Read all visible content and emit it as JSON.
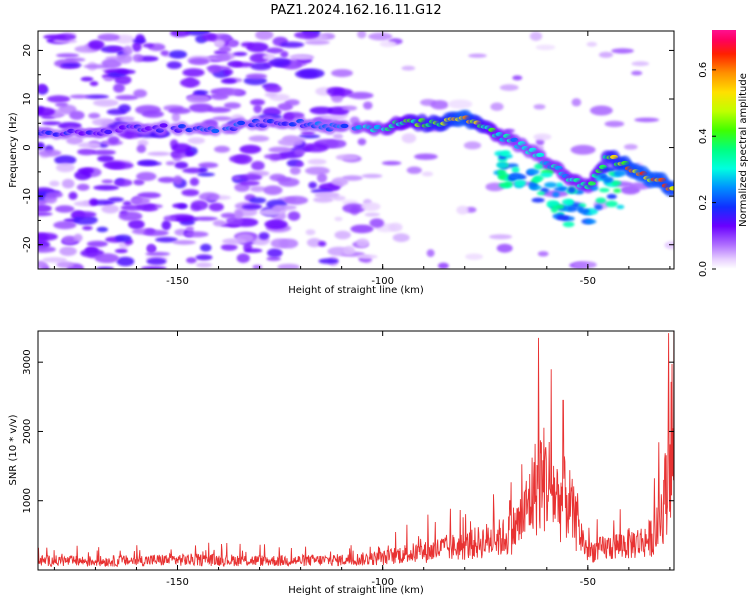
{
  "chart_data": [
    {
      "type": "heatmap",
      "title": "PAZ1.2024.162.16.11.G12",
      "xlabel": "Height of straight line (km)",
      "ylabel": "Frequency (Hz)",
      "xlim": [
        -184,
        -29
      ],
      "ylim": [
        -25,
        24
      ],
      "xticks": [
        -150,
        -100,
        -50
      ],
      "yticks": [
        20,
        10,
        0,
        -10,
        -20
      ],
      "colorbar": {
        "label": "Normalized spectral amplitude",
        "range": [
          0,
          0.72
        ],
        "ticks": [
          "0.0",
          "0.2",
          "0.4",
          "0.6"
        ],
        "colormap": "gist_ncar-like (white-purple-blue-cyan-green-yellow-orange-red-pink)"
      },
      "ridge": {
        "description": "frequency of strongest amplitude vs height",
        "x": [
          -184,
          -170,
          -160,
          -150,
          -140,
          -130,
          -120,
          -110,
          -100,
          -95,
          -90,
          -85,
          -80,
          -75,
          -70,
          -65,
          -60,
          -55,
          -50,
          -45,
          -40,
          -35,
          -30
        ],
        "y": [
          3,
          3,
          4,
          4,
          4,
          5,
          5,
          4,
          4,
          5,
          5,
          5,
          6,
          4,
          2,
          0,
          -3,
          -6,
          -8,
          -2,
          -4,
          -6,
          -8
        ],
        "amplitude": [
          0.22,
          0.14,
          0.16,
          0.18,
          0.22,
          0.2,
          0.2,
          0.25,
          0.32,
          0.38,
          0.45,
          0.5,
          0.62,
          0.42,
          0.32,
          0.28,
          0.3,
          0.32,
          0.34,
          0.45,
          0.58,
          0.62,
          0.58
        ]
      }
    },
    {
      "type": "line",
      "xlabel": "Height of straight line (km)",
      "ylabel": "SNR (10 * v/v)",
      "xlim": [
        -184,
        -29
      ],
      "ylim": [
        0,
        3450
      ],
      "xticks": [
        -150,
        -100,
        -50
      ],
      "yticks": [
        1000,
        2000,
        3000
      ],
      "color": "#e83232",
      "envelope": {
        "description": "sampled level of the noisy SNR trace vs height (peaks noted separately)",
        "x": [
          -184,
          -170,
          -160,
          -150,
          -140,
          -130,
          -120,
          -110,
          -100,
          -95,
          -90,
          -85,
          -80,
          -75,
          -70,
          -66,
          -63,
          -61,
          -59,
          -57,
          -55,
          -53,
          -50,
          -47,
          -44,
          -40,
          -37,
          -35,
          -33,
          -31,
          -30
        ],
        "y": [
          150,
          140,
          150,
          165,
          160,
          150,
          150,
          160,
          190,
          260,
          280,
          350,
          380,
          470,
          530,
          800,
          1300,
          1500,
          1350,
          1100,
          1150,
          750,
          300,
          330,
          380,
          420,
          450,
          500,
          650,
          1250,
          2100
        ],
        "peaks": [
          {
            "x": -62,
            "y": 3350
          },
          {
            "x": -56,
            "y": 2450
          },
          {
            "x": -30.3,
            "y": 3420
          },
          {
            "x": -89,
            "y": 800
          },
          {
            "x": -69,
            "y": 1000
          }
        ]
      }
    }
  ]
}
